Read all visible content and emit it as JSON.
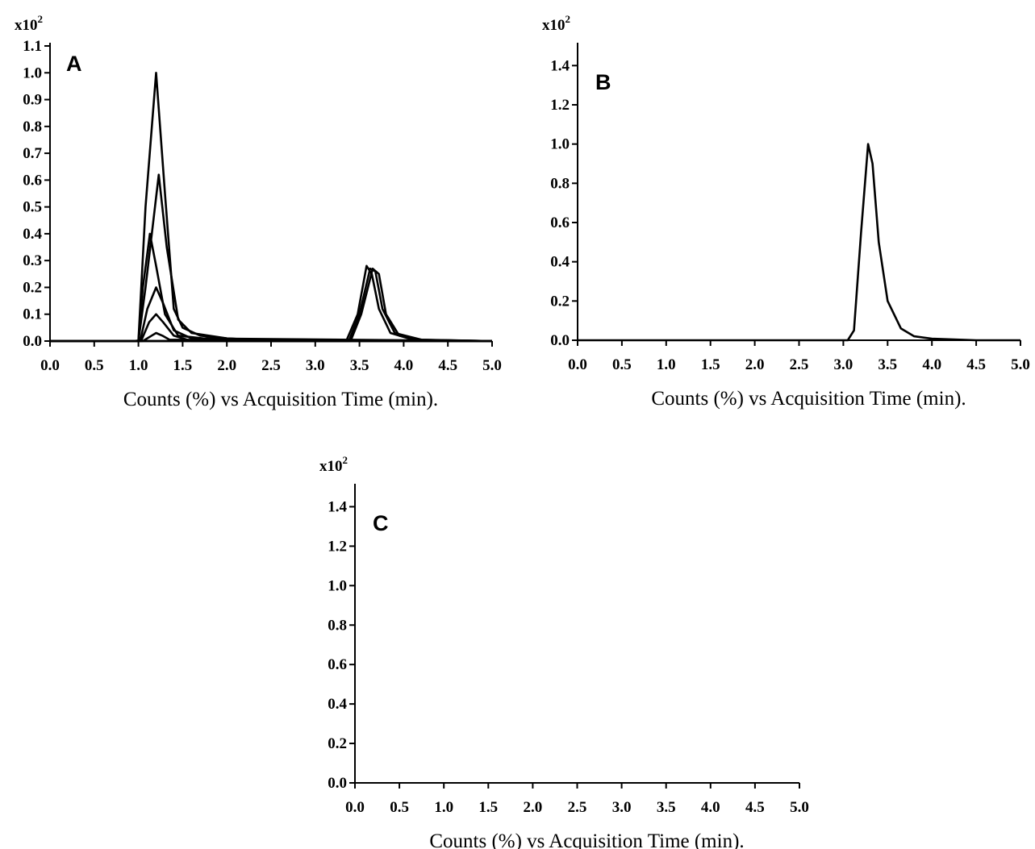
{
  "chart_data": [
    {
      "type": "line",
      "panel": "A",
      "scale_label": "x10",
      "scale_exp": "2",
      "xlabel": "Counts (%) vs Acquisition Time (min).",
      "xlim": [
        0,
        5
      ],
      "ylim": [
        0,
        1.1
      ],
      "x_ticks": [
        0,
        0.5,
        1,
        1.5,
        2,
        2.5,
        3,
        3.5,
        4,
        4.5,
        5
      ],
      "x_tick_labels": [
        "0.0",
        "0.5",
        "1.0",
        "1.5",
        "2.0",
        "2.5",
        "3.0",
        "3.5",
        "4.0",
        "4.5",
        "5.0"
      ],
      "y_ticks": [
        0,
        0.1,
        0.2,
        0.3,
        0.4,
        0.5,
        0.6,
        0.7,
        0.8,
        0.9,
        1.0,
        1.1
      ],
      "y_tick_labels": [
        "0.0",
        "0.1",
        "0.2",
        "0.3",
        "0.4",
        "0.5",
        "0.6",
        "0.7",
        "0.8",
        "0.9",
        "1.0",
        "1.1"
      ],
      "series": [
        {
          "values": [
            [
              0,
              0
            ],
            [
              0.95,
              0
            ],
            [
              1.0,
              0.002
            ],
            [
              1.08,
              0.5
            ],
            [
              1.2,
              1.0
            ],
            [
              1.3,
              0.55
            ],
            [
              1.4,
              0.12
            ],
            [
              1.5,
              0.05
            ],
            [
              1.7,
              0.02
            ],
            [
              2.0,
              0.01
            ],
            [
              2.6,
              0
            ],
            [
              5.0,
              0
            ]
          ]
        },
        {
          "values": [
            [
              0,
              0
            ],
            [
              1.0,
              0
            ],
            [
              1.08,
              0.2
            ],
            [
              1.23,
              0.62
            ],
            [
              1.32,
              0.35
            ],
            [
              1.45,
              0.08
            ],
            [
              1.6,
              0.03
            ],
            [
              2.0,
              0.01
            ],
            [
              2.5,
              0
            ],
            [
              5.0,
              0
            ]
          ]
        },
        {
          "values": [
            [
              0,
              0
            ],
            [
              1.0,
              0
            ],
            [
              1.05,
              0.2
            ],
            [
              1.13,
              0.4
            ],
            [
              1.2,
              0.28
            ],
            [
              1.3,
              0.1
            ],
            [
              1.45,
              0.02
            ],
            [
              2.0,
              0
            ],
            [
              5.0,
              0
            ]
          ]
        },
        {
          "values": [
            [
              0,
              0
            ],
            [
              1.02,
              0
            ],
            [
              1.1,
              0.12
            ],
            [
              1.2,
              0.2
            ],
            [
              1.28,
              0.14
            ],
            [
              1.4,
              0.04
            ],
            [
              1.6,
              0.01
            ],
            [
              5.0,
              0
            ]
          ]
        },
        {
          "values": [
            [
              0,
              0
            ],
            [
              1.03,
              0
            ],
            [
              1.12,
              0.07
            ],
            [
              1.2,
              0.1
            ],
            [
              1.28,
              0.07
            ],
            [
              1.4,
              0.02
            ],
            [
              1.6,
              0
            ],
            [
              5.0,
              0
            ]
          ]
        },
        {
          "values": [
            [
              0,
              0
            ],
            [
              1.05,
              0
            ],
            [
              1.15,
              0.02
            ],
            [
              1.2,
              0.03
            ],
            [
              1.27,
              0.02
            ],
            [
              1.35,
              0.005
            ],
            [
              5.0,
              0
            ]
          ]
        },
        {
          "values": [
            [
              0,
              0
            ],
            [
              3.35,
              0
            ],
            [
              3.48,
              0.1
            ],
            [
              3.58,
              0.28
            ],
            [
              3.64,
              0.25
            ],
            [
              3.72,
              0.12
            ],
            [
              3.85,
              0.03
            ],
            [
              4.1,
              0.005
            ],
            [
              5.0,
              0
            ]
          ]
        },
        {
          "values": [
            [
              0,
              0
            ],
            [
              3.38,
              0
            ],
            [
              3.5,
              0.1
            ],
            [
              3.62,
              0.27
            ],
            [
              3.68,
              0.26
            ],
            [
              3.76,
              0.12
            ],
            [
              3.9,
              0.03
            ],
            [
              4.2,
              0.005
            ],
            [
              5.0,
              0
            ]
          ]
        },
        {
          "values": [
            [
              0,
              0
            ],
            [
              3.4,
              0
            ],
            [
              3.52,
              0.1
            ],
            [
              3.65,
              0.27
            ],
            [
              3.72,
              0.25
            ],
            [
              3.8,
              0.1
            ],
            [
              3.95,
              0.02
            ],
            [
              4.2,
              0.004
            ],
            [
              5.0,
              0
            ]
          ]
        }
      ]
    },
    {
      "type": "line",
      "panel": "B",
      "scale_label": "x10",
      "scale_exp": "2",
      "xlabel": "Counts (%) vs Acquisition Time (min).",
      "xlim": [
        0,
        5
      ],
      "ylim": [
        0,
        1.5
      ],
      "x_ticks": [
        0,
        0.5,
        1,
        1.5,
        2,
        2.5,
        3,
        3.5,
        4,
        4.5,
        5
      ],
      "x_tick_labels": [
        "0.0",
        "0.5",
        "1.0",
        "1.5",
        "2.0",
        "2.5",
        "3.0",
        "3.5",
        "4.0",
        "4.5",
        "5.0"
      ],
      "y_ticks": [
        0,
        0.2,
        0.4,
        0.6,
        0.8,
        1.0,
        1.2,
        1.4
      ],
      "y_tick_labels": [
        "0.0",
        "0.2",
        "0.4",
        "0.6",
        "0.8",
        "1.0",
        "1.2",
        "1.4"
      ],
      "series": [
        {
          "values": [
            [
              0,
              0
            ],
            [
              3.05,
              0
            ],
            [
              3.12,
              0.05
            ],
            [
              3.2,
              0.55
            ],
            [
              3.28,
              1.0
            ],
            [
              3.33,
              0.9
            ],
            [
              3.4,
              0.5
            ],
            [
              3.5,
              0.2
            ],
            [
              3.65,
              0.06
            ],
            [
              3.8,
              0.02
            ],
            [
              4.0,
              0.008
            ],
            [
              4.5,
              0
            ],
            [
              5.0,
              0
            ]
          ]
        }
      ]
    },
    {
      "type": "line",
      "panel": "C",
      "scale_label": "x10",
      "scale_exp": "2",
      "xlabel": "Counts (%) vs Acquisition Time (min).",
      "xlim": [
        0,
        5
      ],
      "ylim": [
        0,
        1.5
      ],
      "x_ticks": [
        0,
        0.5,
        1,
        1.5,
        2,
        2.5,
        3,
        3.5,
        4,
        4.5,
        5
      ],
      "x_tick_labels": [
        "0.0",
        "0.5",
        "1.0",
        "1.5",
        "2.0",
        "2.5",
        "3.0",
        "3.5",
        "4.0",
        "4.5",
        "5.0"
      ],
      "y_ticks": [
        0,
        0.2,
        0.4,
        0.6,
        0.8,
        1.0,
        1.2,
        1.4
      ],
      "y_tick_labels": [
        "0.0",
        "0.2",
        "0.4",
        "0.6",
        "0.8",
        "1.0",
        "1.2",
        "1.4"
      ],
      "series": []
    }
  ]
}
